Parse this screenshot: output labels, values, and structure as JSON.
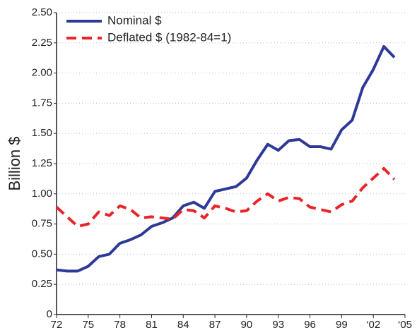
{
  "chart_data": {
    "type": "line",
    "y_label": "Billion $",
    "x": [
      1972,
      1973,
      1974,
      1975,
      1976,
      1977,
      1978,
      1979,
      1980,
      1981,
      1982,
      1983,
      1984,
      1985,
      1986,
      1987,
      1988,
      1989,
      1990,
      1991,
      1992,
      1993,
      1994,
      1995,
      1996,
      1997,
      1998,
      1999,
      2000,
      2001,
      2002,
      2003,
      2004
    ],
    "series": [
      {
        "name": "Nominal $",
        "color": "#2e3a97",
        "linestyle": "solid",
        "values": [
          0.37,
          0.36,
          0.36,
          0.4,
          0.48,
          0.5,
          0.59,
          0.62,
          0.66,
          0.73,
          0.76,
          0.8,
          0.9,
          0.93,
          0.88,
          1.02,
          1.04,
          1.06,
          1.13,
          1.28,
          1.41,
          1.36,
          1.44,
          1.45,
          1.39,
          1.39,
          1.37,
          1.53,
          1.61,
          1.88,
          2.03,
          2.22,
          2.13
        ]
      },
      {
        "name": "Deflated $ (1982-84=1)",
        "color": "#e8262a",
        "linestyle": "dashed",
        "values": [
          0.89,
          0.81,
          0.73,
          0.75,
          0.85,
          0.82,
          0.9,
          0.87,
          0.8,
          0.81,
          0.8,
          0.79,
          0.87,
          0.86,
          0.8,
          0.9,
          0.88,
          0.85,
          0.86,
          0.94,
          1.0,
          0.94,
          0.97,
          0.96,
          0.89,
          0.87,
          0.85,
          0.91,
          0.94,
          1.05,
          1.13,
          1.21,
          1.12
        ]
      }
    ],
    "xlim": [
      1972,
      2005
    ],
    "xticks": [
      {
        "value": 1972,
        "label": "72"
      },
      {
        "value": 1975,
        "label": "75"
      },
      {
        "value": 1978,
        "label": "78"
      },
      {
        "value": 1981,
        "label": "81"
      },
      {
        "value": 1984,
        "label": "84"
      },
      {
        "value": 1987,
        "label": "87"
      },
      {
        "value": 1990,
        "label": "90"
      },
      {
        "value": 1993,
        "label": "93"
      },
      {
        "value": 1996,
        "label": "96"
      },
      {
        "value": 1999,
        "label": "99"
      },
      {
        "value": 2002,
        "label": "‘02"
      },
      {
        "value": 2005,
        "label": "‘05"
      }
    ],
    "ylim": [
      0,
      2.5
    ],
    "yticks": [
      0,
      0.25,
      {
        "value": 0.5,
        "label": "0.50"
      },
      0.75,
      {
        "value": 1,
        "label": "1.00"
      },
      1.25,
      {
        "value": 1.5,
        "label": "1.50"
      },
      1.75,
      {
        "value": 2,
        "label": "2.00"
      },
      2.25,
      {
        "value": 2.5,
        "label": "2.50"
      }
    ],
    "grid": true,
    "legend": "upper left"
  }
}
